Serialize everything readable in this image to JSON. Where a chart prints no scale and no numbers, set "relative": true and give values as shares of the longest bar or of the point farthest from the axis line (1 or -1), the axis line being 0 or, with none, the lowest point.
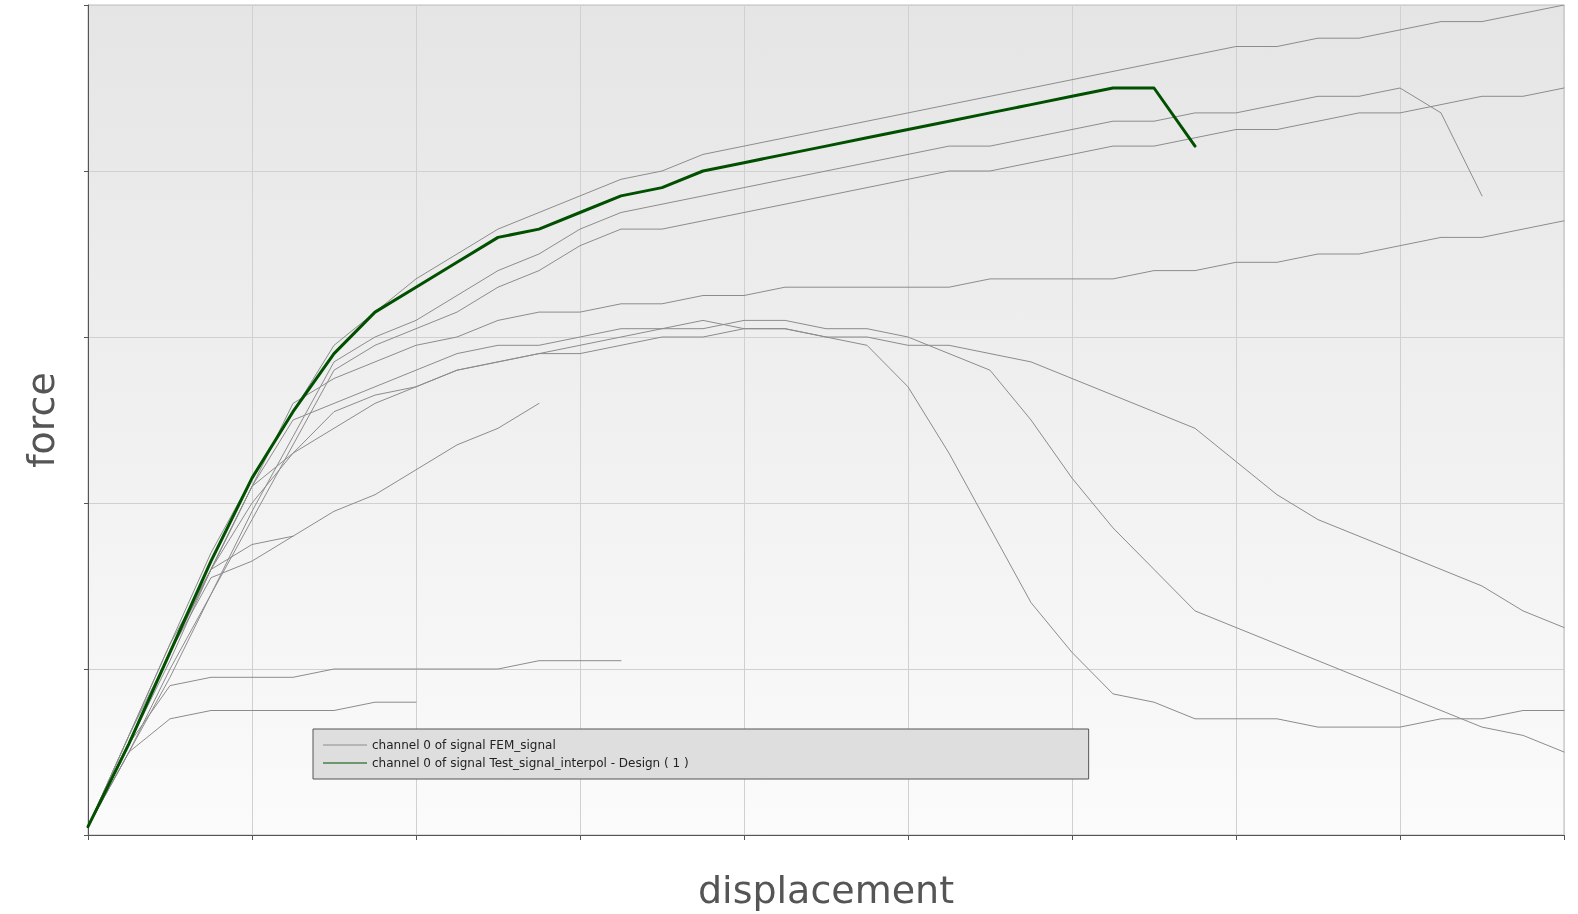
{
  "chart_data": {
    "type": "line",
    "relative": true,
    "xlabel": "displacement",
    "ylabel": "force",
    "categories": [
      null,
      null,
      null,
      null,
      null,
      null,
      null,
      null,
      null,
      null,
      null,
      null,
      null,
      null,
      null,
      null,
      null,
      null,
      null,
      null,
      null,
      null,
      null,
      null,
      null,
      null,
      null,
      null,
      null,
      null,
      null,
      null,
      null,
      null,
      null,
      null,
      null
    ],
    "grid": true,
    "legend": "bottom left",
    "marker": "none",
    "line_style": "solid",
    "series": [
      {
        "name": "channel 0 of signal FEM_signal",
        "color": "#8c8c8c",
        "values": [
          0.01,
          0.12,
          0.23,
          0.34,
          0.43,
          0.51,
          0.59,
          0.63,
          0.67,
          0.7,
          0.73,
          0.75,
          0.77,
          0.79,
          0.8,
          0.82,
          0.83,
          0.84,
          0.85,
          0.86,
          0.87,
          0.88,
          0.89,
          0.9,
          0.91,
          0.92,
          0.93,
          0.94,
          0.95,
          0.95,
          0.96,
          0.96,
          0.97,
          0.98,
          0.98,
          0.99,
          1.0
        ]
      },
      {
        "color": "#8c8c8c",
        "values": [
          0.01,
          0.1,
          0.14,
          0.15,
          0.15,
          0.15,
          0.15,
          0.16,
          0.16,
          null,
          null,
          null,
          null,
          null,
          null,
          null,
          null,
          null,
          null,
          null,
          null,
          null,
          null,
          null,
          null,
          null,
          null,
          null,
          null,
          null,
          null,
          null,
          null,
          null,
          null,
          null,
          null
        ]
      },
      {
        "color": "#8c8c8c",
        "values": [
          0.01,
          0.11,
          0.18,
          0.19,
          0.19,
          0.19,
          0.2,
          0.2,
          0.2,
          0.2,
          0.2,
          0.21,
          0.21,
          0.21,
          null,
          null,
          null,
          null,
          null,
          null,
          null,
          null,
          null,
          null,
          null,
          null,
          null,
          null,
          null,
          null,
          null,
          null,
          null,
          null,
          null,
          null,
          null
        ]
      },
      {
        "color": "#8c8c8c",
        "values": [
          0.01,
          0.11,
          0.22,
          0.32,
          0.4,
          0.46,
          0.51,
          0.53,
          0.54,
          0.56,
          0.57,
          0.58,
          0.58,
          0.59,
          0.6,
          0.6,
          0.61,
          0.61,
          0.6,
          0.59,
          0.54,
          0.46,
          0.37,
          0.28,
          0.22,
          0.17,
          0.16,
          0.14,
          0.14,
          0.14,
          0.13,
          0.13,
          0.13,
          0.14,
          0.14,
          0.15,
          0.15
        ]
      },
      {
        "color": "#8c8c8c",
        "values": [
          0.01,
          0.11,
          0.21,
          0.32,
          0.42,
          0.46,
          0.49,
          0.52,
          0.54,
          0.56,
          0.57,
          0.58,
          0.59,
          0.6,
          0.61,
          0.61,
          0.62,
          0.62,
          0.61,
          0.61,
          0.6,
          0.58,
          0.56,
          0.5,
          0.43,
          0.37,
          0.32,
          0.27,
          0.25,
          0.23,
          0.21,
          0.19,
          0.17,
          0.15,
          0.13,
          0.12,
          0.1
        ]
      },
      {
        "color": "#8c8c8c",
        "values": [
          0.01,
          0.11,
          0.22,
          0.32,
          0.42,
          0.5,
          0.52,
          0.54,
          0.56,
          0.58,
          0.59,
          0.59,
          0.6,
          0.61,
          0.61,
          0.62,
          0.61,
          0.61,
          0.6,
          0.6,
          0.59,
          0.59,
          0.58,
          0.57,
          0.55,
          0.53,
          0.51,
          0.49,
          0.45,
          0.41,
          0.38,
          0.36,
          0.34,
          0.32,
          0.3,
          0.27,
          0.25
        ]
      },
      {
        "color": "#8c8c8c",
        "values": [
          0.01,
          0.11,
          0.22,
          0.32,
          0.42,
          0.52,
          0.55,
          0.57,
          0.59,
          0.6,
          0.62,
          0.63,
          0.63,
          0.64,
          0.64,
          0.65,
          0.65,
          0.66,
          0.66,
          0.66,
          0.66,
          0.66,
          0.67,
          0.67,
          0.67,
          0.67,
          0.68,
          0.68,
          0.69,
          0.69,
          0.7,
          0.7,
          0.71,
          0.72,
          0.72,
          0.73,
          0.74
        ]
      },
      {
        "color": "#8c8c8c",
        "values": [
          0.01,
          0.12,
          0.23,
          0.32,
          0.35,
          0.36,
          null,
          null,
          null,
          null,
          null,
          null,
          null,
          null,
          null,
          null,
          null,
          null,
          null,
          null,
          null,
          null,
          null,
          null,
          null,
          null,
          null,
          null,
          null,
          null,
          null,
          null,
          null,
          null,
          null,
          null,
          null
        ]
      },
      {
        "color": "#8c8c8c",
        "values": [
          0.01,
          0.12,
          0.22,
          0.31,
          0.33,
          0.36,
          0.39,
          0.41,
          0.44,
          0.47,
          0.49,
          0.52,
          null,
          null,
          null,
          null,
          null,
          null,
          null,
          null,
          null,
          null,
          null,
          null,
          null,
          null,
          null,
          null,
          null,
          null,
          null,
          null,
          null,
          null,
          null,
          null,
          null
        ]
      },
      {
        "color": "#8c8c8c",
        "values": [
          0.01,
          0.1,
          0.19,
          0.29,
          0.38,
          0.47,
          0.56,
          0.59,
          0.61,
          0.63,
          0.66,
          0.68,
          0.71,
          0.73,
          0.73,
          0.74,
          0.75,
          0.76,
          0.77,
          0.78,
          0.79,
          0.8,
          0.8,
          0.81,
          0.82,
          0.83,
          0.83,
          0.84,
          0.85,
          0.85,
          0.86,
          0.87,
          0.87,
          0.88,
          0.89,
          0.89,
          0.9
        ]
      },
      {
        "color": "#8c8c8c",
        "values": [
          0.01,
          0.1,
          0.2,
          0.29,
          0.39,
          0.48,
          0.57,
          0.6,
          0.62,
          0.65,
          0.68,
          0.7,
          0.73,
          0.75,
          0.76,
          0.77,
          0.78,
          0.79,
          0.8,
          0.81,
          0.82,
          0.83,
          0.83,
          0.84,
          0.85,
          0.86,
          0.86,
          0.87,
          0.87,
          0.88,
          0.89,
          0.89,
          0.9,
          0.87,
          0.77,
          null,
          null
        ]
      },
      {
        "name": "channel 0 of signal Test_signal_interpol - Design ( 1 )",
        "color": "#005000",
        "values": [
          0.01,
          0.11,
          0.22,
          0.33,
          0.43,
          0.51,
          0.58,
          0.63,
          0.66,
          0.69,
          0.72,
          0.73,
          0.75,
          0.77,
          0.78,
          0.8,
          0.81,
          0.82,
          0.83,
          0.84,
          0.85,
          0.86,
          0.87,
          0.88,
          0.89,
          0.9,
          0.9,
          0.83,
          null,
          null,
          null,
          null,
          null,
          null,
          null,
          null,
          null
        ]
      }
    ]
  }
}
